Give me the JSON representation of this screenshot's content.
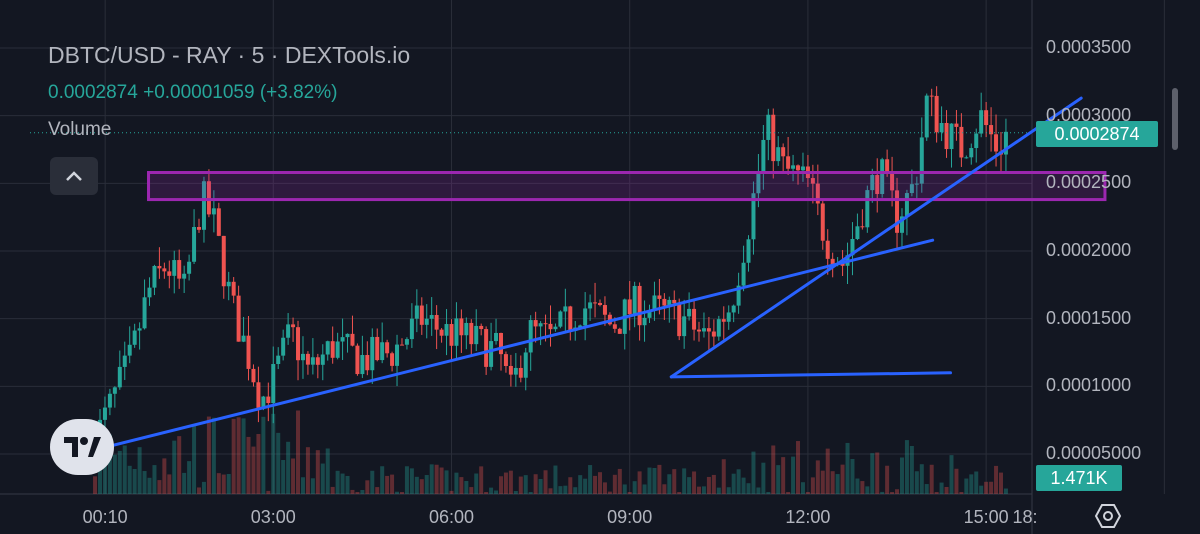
{
  "header": {
    "title": "DBTC/USD - RAY · 5 · DEXTools.io",
    "quote": "0.0002874 +0.00001059 (+3.82%)",
    "volume_label": "Volume"
  },
  "price_tag": "0.0002874",
  "volume_tag": "1.471K",
  "colors": {
    "background": "#131722",
    "up": "#26a69a",
    "down": "#ef5350",
    "trendline": "#2962ff",
    "zone": "#9c27b0",
    "grid": "#2a2e39",
    "text": "#b2b5be"
  },
  "icons": [
    "collapse-chevron-icon",
    "tradingview-logo-icon",
    "settings-hexagon-icon"
  ],
  "chart_data": {
    "type": "candlestick",
    "symbol": "DBTC/USD - RAY",
    "interval": "5",
    "ylim": [
      3e-05,
      0.00036
    ],
    "yticks": [
      "0.00005000",
      "0.0001000",
      "0.0001500",
      "0.0002000",
      "0.0002500",
      "0.0003000",
      "0.0003500"
    ],
    "ytick_values": [
      5e-05,
      0.0001,
      0.00015,
      0.0002,
      0.00025,
      0.0003,
      0.00035
    ],
    "xlim_hours": [
      -1.6,
      18.6
    ],
    "xticks": [
      "00:10",
      "03:00",
      "06:00",
      "09:00",
      "12:00",
      "15:00",
      "18:"
    ],
    "xtick_hours": [
      0.17,
      3,
      6,
      9,
      12,
      15,
      18
    ],
    "last_price": 0.0002874,
    "change": 1.059e-05,
    "change_pct": 3.82,
    "price_path": [
      [
        0.0,
        6e-05
      ],
      [
        0.3,
        9e-05
      ],
      [
        0.6,
        0.00012
      ],
      [
        0.9,
        0.00017
      ],
      [
        1.2,
        0.00019
      ],
      [
        1.5,
        0.00017
      ],
      [
        1.8,
        0.00024
      ],
      [
        2.0,
        0.00022
      ],
      [
        2.3,
        0.00016
      ],
      [
        2.6,
        0.00012
      ],
      [
        2.8,
        9e-05
      ],
      [
        3.0,
        0.000105
      ],
      [
        3.3,
        0.00014
      ],
      [
        3.6,
        0.00011
      ],
      [
        4.0,
        0.00013
      ],
      [
        4.5,
        0.00012
      ],
      [
        5.0,
        0.000125
      ],
      [
        5.5,
        0.00015
      ],
      [
        5.9,
        0.00014
      ],
      [
        6.3,
        0.000135
      ],
      [
        6.8,
        0.000125
      ],
      [
        7.0,
        9.5e-05
      ],
      [
        7.3,
        0.00014
      ],
      [
        7.7,
        0.000135
      ],
      [
        8.2,
        0.00016
      ],
      [
        8.7,
        0.000145
      ],
      [
        9.1,
        0.00016
      ],
      [
        9.5,
        0.000155
      ],
      [
        9.9,
        0.00015
      ],
      [
        10.3,
        0.000135
      ],
      [
        10.7,
        0.00016
      ],
      [
        11.0,
        0.00022
      ],
      [
        11.3,
        0.00029
      ],
      [
        11.6,
        0.00026
      ],
      [
        12.0,
        0.00025
      ],
      [
        12.3,
        0.00021
      ],
      [
        12.6,
        0.00019
      ],
      [
        12.9,
        0.00023
      ],
      [
        13.2,
        0.00026
      ],
      [
        13.5,
        0.000225
      ],
      [
        13.8,
        0.00025
      ],
      [
        14.0,
        0.00031
      ],
      [
        14.3,
        0.00029
      ],
      [
        14.6,
        0.000275
      ],
      [
        14.9,
        0.0003
      ],
      [
        15.2,
        0.000275
      ],
      [
        15.35,
        0.0002874
      ]
    ],
    "volume_tag": "1.471K",
    "annotations": {
      "zone": {
        "x0": 0.9,
        "x1": 17.0,
        "y0": 0.000238,
        "y1": 0.000258
      },
      "trendlines": [
        {
          "x0": -0.1,
          "y0": 5.2e-05,
          "x1": 14.1,
          "y1": 0.000208
        },
        {
          "x0": 9.7,
          "y0": 0.000107,
          "x1": 14.4,
          "y1": 0.00011
        },
        {
          "x0": 9.7,
          "y0": 0.000107,
          "x1": 16.6,
          "y1": 0.000313
        }
      ]
    },
    "grid": true
  }
}
